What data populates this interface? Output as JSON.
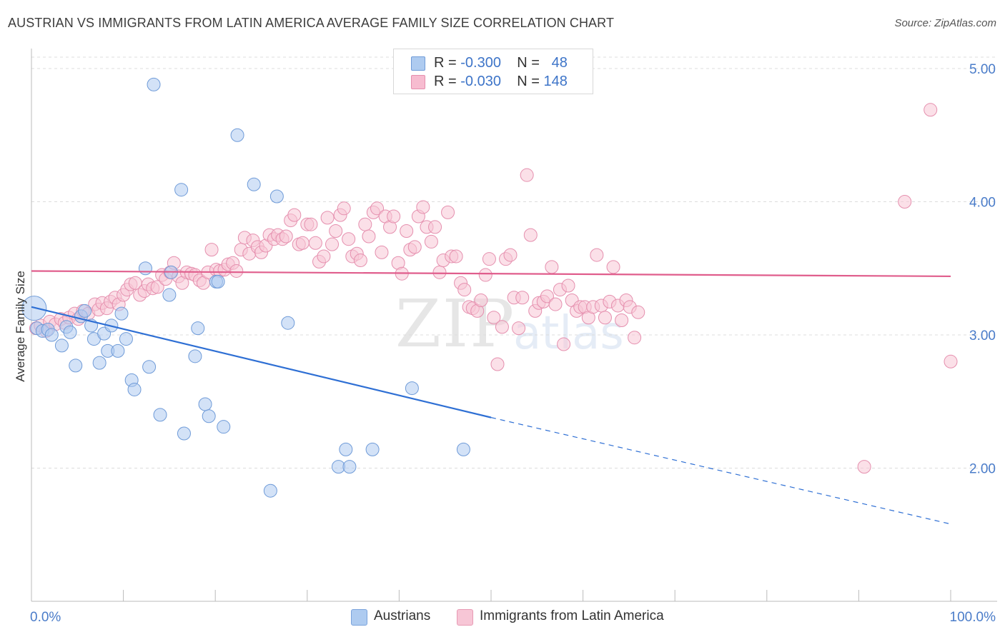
{
  "title": "AUSTRIAN VS IMMIGRANTS FROM LATIN AMERICA AVERAGE FAMILY SIZE CORRELATION CHART",
  "source": "Source: ZipAtlas.com",
  "watermark": {
    "zip": "ZIP",
    "atlas": "atlas"
  },
  "legend_top": {
    "rows": [
      {
        "r_label": "R = ",
        "r_value": "-0.300",
        "n_label": "N = ",
        "n_value": "48",
        "color": "#aecbf0"
      },
      {
        "r_label": "R = ",
        "r_value": "-0.030",
        "n_label": "N = ",
        "n_value": "148",
        "color": "#f7bcd0"
      }
    ]
  },
  "legend_bottom": [
    {
      "label": "Austrians",
      "color": "#aecbf0",
      "border": "#7aa3dc"
    },
    {
      "label": "Immigrants from Latin America",
      "color": "#f7c6d6",
      "border": "#e89ab4"
    }
  ],
  "chart_data": {
    "type": "scatter",
    "title": "AUSTRIAN VS IMMIGRANTS FROM LATIN AMERICA AVERAGE FAMILY SIZE CORRELATION CHART",
    "xlabel": "",
    "ylabel": "Average Family Size",
    "xlim": [
      0,
      100
    ],
    "ylim": [
      1.0,
      5.15
    ],
    "x_tick_labels": [
      "0.0%",
      "100.0%"
    ],
    "y_ticks": [
      2.0,
      3.0,
      4.0,
      5.0
    ],
    "y_tick_labels": [
      "2.00",
      "3.00",
      "4.00",
      "5.00"
    ],
    "grid": true,
    "series": [
      {
        "name": "Austrians",
        "color": "#aecbf0",
        "stroke": "#6f9bd8",
        "trend": {
          "x0": 0,
          "y0": 3.21,
          "x1": 50,
          "y1": 2.38,
          "dashed_to_x": 100,
          "dashed_to_y": 1.58,
          "color": "#2e6fd4"
        },
        "points": [
          [
            0.3,
            3.2
          ],
          [
            0.6,
            3.05
          ],
          [
            1.2,
            3.03
          ],
          [
            1.8,
            3.04
          ],
          [
            2.2,
            3.0
          ],
          [
            3.3,
            2.92
          ],
          [
            3.8,
            3.06
          ],
          [
            4.2,
            3.02
          ],
          [
            4.8,
            2.77
          ],
          [
            5.4,
            3.14
          ],
          [
            5.8,
            3.18
          ],
          [
            6.5,
            3.07
          ],
          [
            6.8,
            2.97
          ],
          [
            7.4,
            2.79
          ],
          [
            7.9,
            3.01
          ],
          [
            8.3,
            2.88
          ],
          [
            8.7,
            3.07
          ],
          [
            9.4,
            2.88
          ],
          [
            9.8,
            3.16
          ],
          [
            10.3,
            2.97
          ],
          [
            10.9,
            2.66
          ],
          [
            11.2,
            2.59
          ],
          [
            12.4,
            3.5
          ],
          [
            12.8,
            2.76
          ],
          [
            13.3,
            4.88
          ],
          [
            14.0,
            2.4
          ],
          [
            15.0,
            3.3
          ],
          [
            15.2,
            3.47
          ],
          [
            16.3,
            4.09
          ],
          [
            16.6,
            2.26
          ],
          [
            17.8,
            2.84
          ],
          [
            18.1,
            3.05
          ],
          [
            18.9,
            2.48
          ],
          [
            19.3,
            2.39
          ],
          [
            20.1,
            3.4
          ],
          [
            20.9,
            2.31
          ],
          [
            22.4,
            4.5
          ],
          [
            24.2,
            4.13
          ],
          [
            26.0,
            1.83
          ],
          [
            26.7,
            4.04
          ],
          [
            27.9,
            3.09
          ],
          [
            33.4,
            2.01
          ],
          [
            34.2,
            2.14
          ],
          [
            34.6,
            2.01
          ],
          [
            37.1,
            2.14
          ],
          [
            41.4,
            2.6
          ],
          [
            47.0,
            2.14
          ],
          [
            20.3,
            3.4
          ]
        ]
      },
      {
        "name": "Immigrants from Latin America",
        "color": "#f7c6d6",
        "stroke": "#e58fae",
        "trend": {
          "x0": 0,
          "y0": 3.48,
          "x1": 100,
          "y1": 3.44,
          "color": "#e05d8c"
        },
        "points": [
          [
            0.5,
            3.05
          ],
          [
            1.0,
            3.07
          ],
          [
            1.6,
            3.03
          ],
          [
            2.0,
            3.1
          ],
          [
            2.6,
            3.08
          ],
          [
            3.2,
            3.12
          ],
          [
            3.6,
            3.09
          ],
          [
            4.1,
            3.13
          ],
          [
            4.7,
            3.16
          ],
          [
            5.1,
            3.12
          ],
          [
            5.6,
            3.18
          ],
          [
            6.2,
            3.16
          ],
          [
            6.9,
            3.23
          ],
          [
            7.3,
            3.19
          ],
          [
            7.7,
            3.24
          ],
          [
            8.2,
            3.2
          ],
          [
            8.6,
            3.25
          ],
          [
            9.1,
            3.28
          ],
          [
            9.5,
            3.23
          ],
          [
            10.0,
            3.3
          ],
          [
            10.4,
            3.34
          ],
          [
            10.8,
            3.38
          ],
          [
            11.3,
            3.39
          ],
          [
            11.8,
            3.3
          ],
          [
            12.3,
            3.33
          ],
          [
            12.7,
            3.38
          ],
          [
            13.2,
            3.35
          ],
          [
            13.7,
            3.36
          ],
          [
            14.2,
            3.45
          ],
          [
            14.6,
            3.42
          ],
          [
            15.1,
            3.47
          ],
          [
            15.5,
            3.54
          ],
          [
            16.0,
            3.44
          ],
          [
            16.4,
            3.39
          ],
          [
            16.9,
            3.47
          ],
          [
            17.4,
            3.46
          ],
          [
            17.8,
            3.45
          ],
          [
            18.3,
            3.41
          ],
          [
            18.7,
            3.39
          ],
          [
            19.2,
            3.47
          ],
          [
            19.6,
            3.64
          ],
          [
            20.1,
            3.49
          ],
          [
            20.5,
            3.48
          ],
          [
            21.0,
            3.49
          ],
          [
            21.4,
            3.53
          ],
          [
            21.9,
            3.54
          ],
          [
            22.3,
            3.48
          ],
          [
            22.8,
            3.64
          ],
          [
            23.2,
            3.73
          ],
          [
            23.7,
            3.61
          ],
          [
            24.1,
            3.71
          ],
          [
            24.6,
            3.66
          ],
          [
            25.0,
            3.62
          ],
          [
            25.5,
            3.67
          ],
          [
            25.9,
            3.75
          ],
          [
            26.4,
            3.72
          ],
          [
            26.8,
            3.75
          ],
          [
            27.3,
            3.72
          ],
          [
            27.7,
            3.74
          ],
          [
            28.2,
            3.86
          ],
          [
            28.6,
            3.9
          ],
          [
            29.1,
            3.68
          ],
          [
            29.5,
            3.69
          ],
          [
            30.0,
            3.83
          ],
          [
            30.4,
            3.83
          ],
          [
            30.9,
            3.69
          ],
          [
            31.3,
            3.55
          ],
          [
            31.8,
            3.59
          ],
          [
            32.2,
            3.88
          ],
          [
            32.7,
            3.68
          ],
          [
            33.1,
            3.78
          ],
          [
            33.6,
            3.9
          ],
          [
            34.0,
            3.95
          ],
          [
            34.5,
            3.72
          ],
          [
            34.9,
            3.59
          ],
          [
            35.4,
            3.61
          ],
          [
            35.8,
            3.56
          ],
          [
            36.3,
            3.83
          ],
          [
            36.7,
            3.74
          ],
          [
            37.2,
            3.92
          ],
          [
            37.6,
            3.95
          ],
          [
            38.1,
            3.62
          ],
          [
            38.5,
            3.89
          ],
          [
            39.0,
            3.81
          ],
          [
            39.4,
            3.89
          ],
          [
            39.9,
            3.54
          ],
          [
            40.3,
            3.46
          ],
          [
            40.8,
            3.78
          ],
          [
            41.2,
            3.64
          ],
          [
            41.7,
            3.66
          ],
          [
            42.1,
            3.89
          ],
          [
            42.6,
            3.96
          ],
          [
            43.0,
            3.81
          ],
          [
            43.5,
            3.7
          ],
          [
            43.9,
            3.81
          ],
          [
            44.4,
            3.47
          ],
          [
            44.8,
            3.56
          ],
          [
            45.3,
            3.92
          ],
          [
            45.7,
            3.59
          ],
          [
            46.2,
            3.59
          ],
          [
            46.7,
            3.39
          ],
          [
            47.1,
            3.34
          ],
          [
            47.6,
            3.21
          ],
          [
            48.0,
            3.2
          ],
          [
            48.5,
            3.18
          ],
          [
            48.9,
            3.26
          ],
          [
            49.4,
            3.45
          ],
          [
            49.8,
            3.57
          ],
          [
            50.3,
            3.13
          ],
          [
            50.7,
            2.78
          ],
          [
            51.2,
            3.06
          ],
          [
            51.6,
            3.57
          ],
          [
            52.1,
            3.6
          ],
          [
            52.5,
            3.28
          ],
          [
            53.0,
            3.05
          ],
          [
            53.4,
            3.28
          ],
          [
            53.9,
            4.2
          ],
          [
            54.3,
            3.75
          ],
          [
            54.8,
            3.18
          ],
          [
            55.2,
            3.24
          ],
          [
            55.7,
            3.25
          ],
          [
            56.1,
            3.29
          ],
          [
            56.6,
            3.51
          ],
          [
            57.0,
            3.23
          ],
          [
            57.5,
            3.34
          ],
          [
            57.9,
            2.93
          ],
          [
            58.4,
            3.37
          ],
          [
            58.8,
            3.26
          ],
          [
            59.3,
            3.18
          ],
          [
            59.7,
            3.21
          ],
          [
            60.2,
            3.21
          ],
          [
            60.6,
            3.13
          ],
          [
            61.1,
            3.21
          ],
          [
            61.5,
            3.6
          ],
          [
            62.0,
            3.22
          ],
          [
            62.4,
            3.13
          ],
          [
            62.9,
            3.25
          ],
          [
            63.3,
            3.51
          ],
          [
            63.8,
            3.22
          ],
          [
            64.2,
            3.11
          ],
          [
            64.7,
            3.26
          ],
          [
            65.1,
            3.21
          ],
          [
            65.6,
            2.98
          ],
          [
            66.0,
            3.17
          ],
          [
            90.6,
            2.01
          ],
          [
            95.0,
            4.0
          ],
          [
            97.8,
            4.69
          ],
          [
            100.0,
            2.8
          ]
        ]
      }
    ]
  }
}
